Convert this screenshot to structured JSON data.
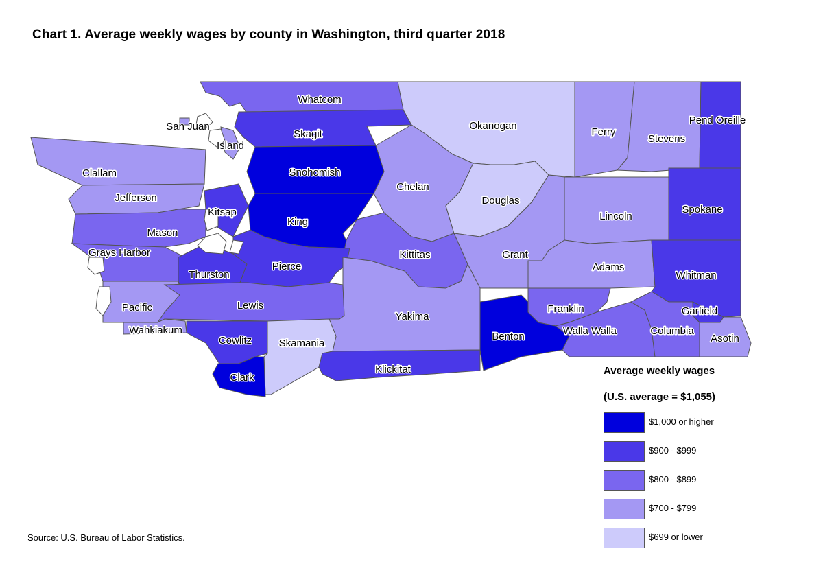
{
  "title": "Chart 1. Average weekly wages by county in Washington, third quarter 2018",
  "source": "Source: U.S. Bureau of Labor Statistics.",
  "legend": {
    "title": "Average weekly wages",
    "subtitle": "(U.S. average = $1,055)",
    "items": [
      {
        "label": "$1,000 or higher",
        "color": "#0000dd"
      },
      {
        "label": "$900 - $999",
        "color": "#4a38e8"
      },
      {
        "label": "$800 - $899",
        "color": "#7a66ef"
      },
      {
        "label": "$700 - $799",
        "color": "#a498f3"
      },
      {
        "label": "$699 or lower",
        "color": "#cdcbfb"
      }
    ]
  },
  "counties": [
    {
      "name": "Whatcom",
      "class": 2
    },
    {
      "name": "San Juan",
      "class": 3
    },
    {
      "name": "Skagit",
      "class": 1
    },
    {
      "name": "Island",
      "class": 3
    },
    {
      "name": "Okanogan",
      "class": 4
    },
    {
      "name": "Ferry",
      "class": 3
    },
    {
      "name": "Stevens",
      "class": 3
    },
    {
      "name": "Pend Oreille",
      "class": 1
    },
    {
      "name": "Clallam",
      "class": 3
    },
    {
      "name": "Snohomish",
      "class": 0
    },
    {
      "name": "Chelan",
      "class": 3
    },
    {
      "name": "Douglas",
      "class": 4
    },
    {
      "name": "Jefferson",
      "class": 3
    },
    {
      "name": "Kitsap",
      "class": 1
    },
    {
      "name": "Mason",
      "class": 2
    },
    {
      "name": "King",
      "class": 0
    },
    {
      "name": "Lincoln",
      "class": 3
    },
    {
      "name": "Spokane",
      "class": 1
    },
    {
      "name": "Grays Harbor",
      "class": 2
    },
    {
      "name": "Kittitas",
      "class": 2
    },
    {
      "name": "Grant",
      "class": 3
    },
    {
      "name": "Thurston",
      "class": 1
    },
    {
      "name": "Pierce",
      "class": 1
    },
    {
      "name": "Adams",
      "class": 3
    },
    {
      "name": "Whitman",
      "class": 1
    },
    {
      "name": "Pacific",
      "class": 3
    },
    {
      "name": "Lewis",
      "class": 2
    },
    {
      "name": "Yakima",
      "class": 3
    },
    {
      "name": "Franklin",
      "class": 2
    },
    {
      "name": "Garfield",
      "class": 1
    },
    {
      "name": "Wahkiakum",
      "class": 3
    },
    {
      "name": "Cowlitz",
      "class": 1
    },
    {
      "name": "Skamania",
      "class": 4
    },
    {
      "name": "Benton",
      "class": 0
    },
    {
      "name": "Walla Walla",
      "class": 2
    },
    {
      "name": "Columbia",
      "class": 2
    },
    {
      "name": "Asotin",
      "class": 3
    },
    {
      "name": "Klickitat",
      "class": 1
    },
    {
      "name": "Clark",
      "class": 0
    }
  ]
}
